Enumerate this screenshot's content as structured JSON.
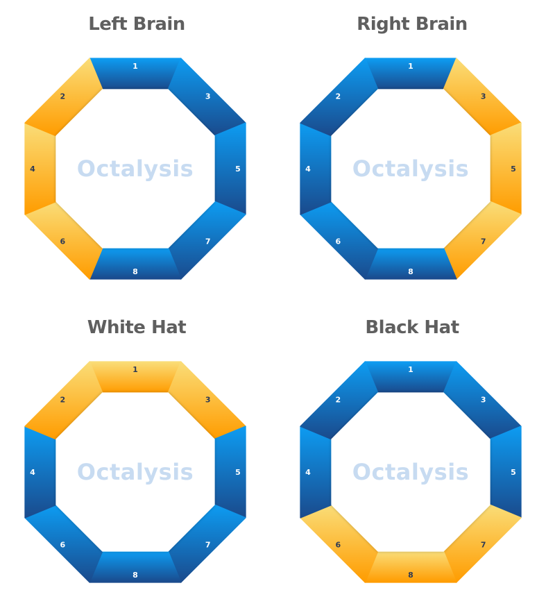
{
  "colors": {
    "blue_light": "#0d9cf2",
    "blue_dark": "#1a4a8c",
    "yellow_light": "#fadd78",
    "orange": "#ff9c00",
    "number_on_blue": "#ffffff",
    "number_on_yellow": "#2d3a55",
    "title": "#5f5f5f",
    "center_word": "#c7dbf1"
  },
  "center_word": "Octalysis",
  "panels": [
    {
      "title": "Left Brain",
      "highlight": [
        2,
        4,
        6
      ]
    },
    {
      "title": "Right Brain",
      "highlight": [
        3,
        5,
        7
      ]
    },
    {
      "title": "White Hat",
      "highlight": [
        1,
        2,
        3
      ]
    },
    {
      "title": "Black Hat",
      "highlight": [
        6,
        7,
        8
      ]
    }
  ],
  "segments": [
    {
      "id": 1,
      "label": "1"
    },
    {
      "id": 3,
      "label": "3"
    },
    {
      "id": 5,
      "label": "5"
    },
    {
      "id": 7,
      "label": "7"
    },
    {
      "id": 8,
      "label": "8"
    },
    {
      "id": 6,
      "label": "6"
    },
    {
      "id": 4,
      "label": "4"
    },
    {
      "id": 2,
      "label": "2"
    }
  ]
}
